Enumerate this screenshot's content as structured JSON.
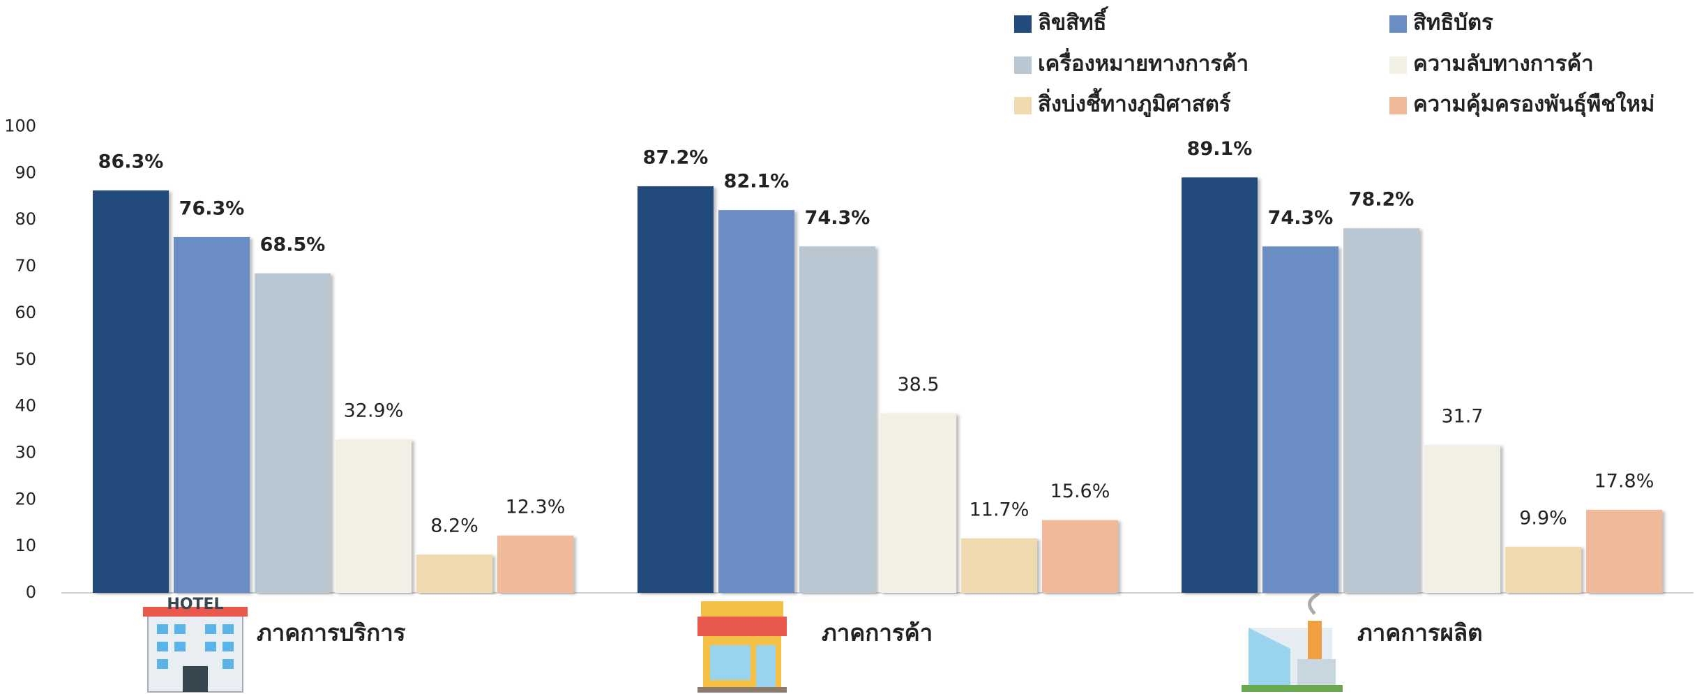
{
  "chart_data": {
    "type": "bar",
    "categories": [
      "ภาคการบริการ",
      "ภาคการค้า",
      "ภาคการผลิต"
    ],
    "series": [
      {
        "name": "ลิขสิทธิ์",
        "color": "#234b7c",
        "values": [
          86.3,
          87.2,
          89.1
        ],
        "value_labels": [
          "86.3%",
          "87.2%",
          "89.1%"
        ],
        "bold": true
      },
      {
        "name": "สิทธิบัตร",
        "color": "#6a8dc3",
        "values": [
          76.3,
          82.1,
          74.3
        ],
        "value_labels": [
          "76.3%",
          "82.1%",
          "74.3%"
        ],
        "bold": true
      },
      {
        "name": "เครื่องหมายทางการค้า",
        "color": "#b9c7d2",
        "values": [
          68.5,
          74.3,
          78.2
        ],
        "value_labels": [
          "68.5%",
          "74.3%",
          "78.2%"
        ],
        "bold": true
      },
      {
        "name": "ความลับทางการค้า",
        "color": "#f2efe5",
        "values": [
          32.9,
          38.5,
          31.7
        ],
        "value_labels": [
          "32.9%",
          "38.5",
          "31.7"
        ],
        "bold": false
      },
      {
        "name": "สิ่งบ่งชี้ทางภูมิศาสตร์",
        "color": "#f0dab0",
        "values": [
          8.2,
          11.7,
          9.9
        ],
        "value_labels": [
          "8.2%",
          "11.7%",
          "9.9%"
        ],
        "bold": false
      },
      {
        "name": "ความคุ้มครองพันธุ์พืชใหม่",
        "color": "#efb99a",
        "values": [
          12.3,
          15.6,
          17.8
        ],
        "value_labels": [
          "12.3%",
          "15.6%",
          "17.8%"
        ],
        "bold": false
      }
    ],
    "ylim": [
      0,
      100
    ],
    "yticks": [
      0,
      10,
      20,
      30,
      40,
      50,
      60,
      70,
      80,
      90,
      100
    ],
    "grid": false,
    "legend": "top-right",
    "annotations": [
      "HOTEL"
    ]
  }
}
